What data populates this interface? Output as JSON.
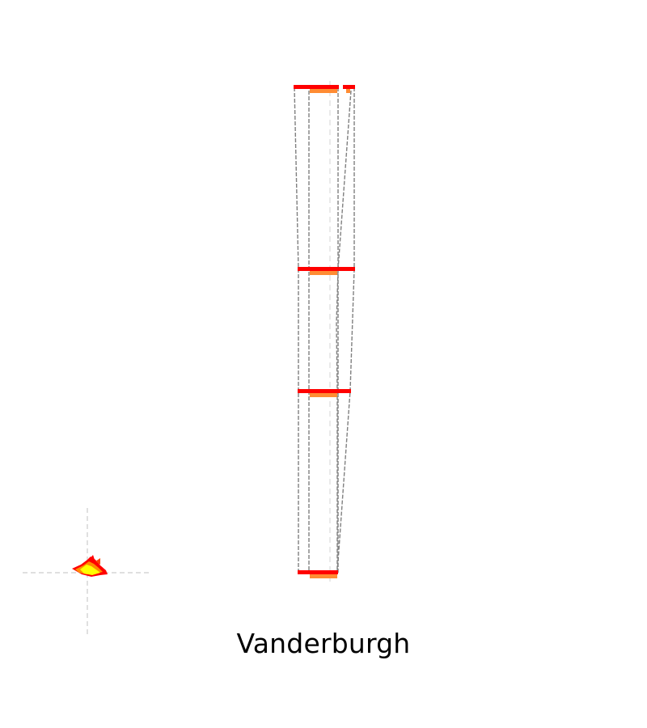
{
  "title": "Vanderburgh",
  "colors": {
    "background": "#ffffff",
    "outline": "#808080",
    "guide": "#cccccc",
    "level_bar_primary": "#ff0000",
    "level_bar_secondary": "#ff8c33",
    "marker_outer": "#ff0000",
    "marker_mid": "#ff8c00",
    "marker_inner": "#ffff00"
  },
  "marker": {
    "icon": "flame-glyph-icon"
  }
}
